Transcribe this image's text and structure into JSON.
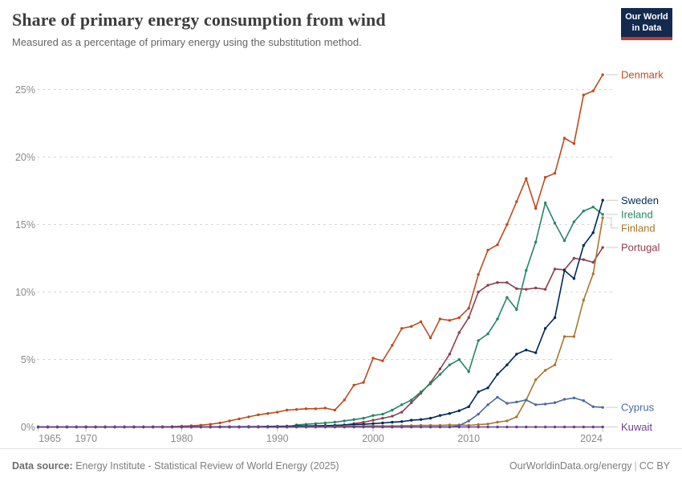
{
  "header": {
    "title": "Share of primary energy consumption from wind",
    "subtitle": "Measured as a percentage of primary energy using the substitution method."
  },
  "logo": {
    "line1": "Our World",
    "line2": "in Data",
    "bg_color": "#132A4E",
    "bar_color": "#BE3A34"
  },
  "footer": {
    "source_label": "Data source:",
    "source_text": " Energy Institute - Statistical Review of World Energy (2025)",
    "link": "OurWorldinData.org/energy",
    "separator": "|",
    "license": "CC BY"
  },
  "chart_data": {
    "type": "line",
    "title": "Share of primary energy consumption from wind",
    "unit": "%",
    "grid": true,
    "legend_position": "right-of-line-ends",
    "x": {
      "start_year": 1965,
      "end_year": 2024,
      "ticks": [
        {
          "year": 1965,
          "label": "1965"
        },
        {
          "year": 1970,
          "label": "1970"
        },
        {
          "year": 1980,
          "label": "1980"
        },
        {
          "year": 1990,
          "label": "1990"
        },
        {
          "year": 2000,
          "label": "2000"
        },
        {
          "year": 2010,
          "label": "2010"
        },
        {
          "year": 2024,
          "label": "2024"
        }
      ]
    },
    "y": {
      "min": 0,
      "max": 26.5,
      "ticks": [
        {
          "value": 0,
          "label": "0%"
        },
        {
          "value": 5,
          "label": "5%"
        },
        {
          "value": 10,
          "label": "10%"
        },
        {
          "value": 15,
          "label": "15%"
        },
        {
          "value": 20,
          "label": "20%"
        },
        {
          "value": 25,
          "label": "25%"
        }
      ]
    },
    "series": [
      {
        "name": "Denmark",
        "color": "#BC4B20",
        "values": [
          0,
          0,
          0,
          0,
          0,
          0,
          0,
          0,
          0,
          0,
          0,
          0,
          0.01,
          0.02,
          0.03,
          0.06,
          0.09,
          0.13,
          0.2,
          0.3,
          0.45,
          0.6,
          0.75,
          0.9,
          1.0,
          1.1,
          1.25,
          1.3,
          1.35,
          1.35,
          1.4,
          1.25,
          2.0,
          3.1,
          3.3,
          5.1,
          4.9,
          6.05,
          7.3,
          7.45,
          7.8,
          6.6,
          8.0,
          7.9,
          8.1,
          8.8,
          11.3,
          13.1,
          13.5,
          15.0,
          16.7,
          18.4,
          16.2,
          18.5,
          18.8,
          21.4,
          21.0,
          24.6,
          24.9,
          26.1
        ]
      },
      {
        "name": "Portugal",
        "color": "#8F3D4D",
        "values": [
          0,
          0,
          0,
          0,
          0,
          0,
          0,
          0,
          0,
          0,
          0,
          0,
          0,
          0,
          0,
          0,
          0,
          0,
          0,
          0,
          0,
          0,
          0,
          0,
          0,
          0,
          0,
          0,
          0,
          0.03,
          0.05,
          0.1,
          0.15,
          0.25,
          0.35,
          0.5,
          0.65,
          0.8,
          1.1,
          1.8,
          2.5,
          3.3,
          4.3,
          5.4,
          7.0,
          8.1,
          10.0,
          10.5,
          10.7,
          10.7,
          10.25,
          10.2,
          10.3,
          10.2,
          11.7,
          11.65,
          12.5,
          12.4,
          12.2,
          13.3
        ]
      },
      {
        "name": "Ireland",
        "color": "#258665",
        "values": [
          0,
          0,
          0,
          0,
          0,
          0,
          0,
          0,
          0,
          0,
          0,
          0,
          0,
          0,
          0,
          0,
          0,
          0,
          0,
          0,
          0,
          0,
          0,
          0,
          0,
          0,
          0,
          0.15,
          0.2,
          0.25,
          0.3,
          0.36,
          0.45,
          0.55,
          0.65,
          0.85,
          0.95,
          1.25,
          1.65,
          2.0,
          2.6,
          3.2,
          3.9,
          4.6,
          5.0,
          4.1,
          6.4,
          6.9,
          8.0,
          9.6,
          8.7,
          11.6,
          13.7,
          16.6,
          15.1,
          13.8,
          15.2,
          16.0,
          16.3,
          15.75
        ]
      },
      {
        "name": "Sweden",
        "color": "#00295B",
        "values": [
          0,
          0,
          0,
          0,
          0,
          0,
          0,
          0,
          0,
          0,
          0,
          0,
          0,
          0,
          0,
          0,
          0,
          0.01,
          0.01,
          0.02,
          0.02,
          0.02,
          0.03,
          0.03,
          0.04,
          0.05,
          0.06,
          0.07,
          0.08,
          0.09,
          0.1,
          0.12,
          0.15,
          0.17,
          0.2,
          0.25,
          0.3,
          0.35,
          0.4,
          0.5,
          0.55,
          0.65,
          0.85,
          1.0,
          1.2,
          1.5,
          2.6,
          2.9,
          3.9,
          4.6,
          5.4,
          5.7,
          5.5,
          7.3,
          8.1,
          11.6,
          11.0,
          13.45,
          14.4,
          16.8
        ]
      },
      {
        "name": "Finland",
        "color": "#A8772C",
        "values": [
          0,
          0,
          0,
          0,
          0,
          0,
          0,
          0,
          0,
          0,
          0,
          0,
          0,
          0,
          0,
          0,
          0,
          0,
          0,
          0,
          0,
          0,
          0,
          0,
          0,
          0,
          0,
          0.01,
          0.02,
          0.02,
          0.03,
          0.03,
          0.05,
          0.05,
          0.07,
          0.08,
          0.07,
          0.07,
          0.09,
          0.1,
          0.12,
          0.12,
          0.12,
          0.15,
          0.15,
          0.12,
          0.18,
          0.22,
          0.36,
          0.45,
          0.75,
          2.0,
          3.5,
          4.2,
          4.6,
          6.7,
          6.7,
          9.4,
          11.35,
          15.5
        ]
      },
      {
        "name": "Cyprus",
        "color": "#4C6A9C",
        "values": [
          0,
          0,
          0,
          0,
          0,
          0,
          0,
          0,
          0,
          0,
          0,
          0,
          0,
          0,
          0,
          0,
          0,
          0,
          0,
          0,
          0,
          0,
          0,
          0,
          0,
          0,
          0,
          0,
          0,
          0,
          0,
          0,
          0,
          0,
          0,
          0,
          0,
          0,
          0,
          0,
          0,
          0,
          0,
          0,
          0.1,
          0.45,
          0.95,
          1.65,
          2.2,
          1.75,
          1.85,
          2.0,
          1.65,
          1.7,
          1.8,
          2.05,
          2.15,
          1.95,
          1.5,
          1.45
        ]
      },
      {
        "name": "Kuwait",
        "color": "#6D3E91",
        "values": [
          0,
          0,
          0,
          0,
          0,
          0,
          0,
          0,
          0,
          0,
          0,
          0,
          0,
          0,
          0,
          0,
          0,
          0,
          0,
          0,
          0,
          0,
          0,
          0,
          0,
          0,
          0,
          0,
          0,
          0,
          0,
          0,
          0,
          0,
          0,
          0,
          0,
          0,
          0,
          0,
          0,
          0,
          0,
          0,
          0,
          0,
          0,
          0,
          0,
          0,
          0,
          0,
          0,
          0,
          0,
          0,
          0,
          0,
          0,
          0
        ]
      }
    ]
  }
}
